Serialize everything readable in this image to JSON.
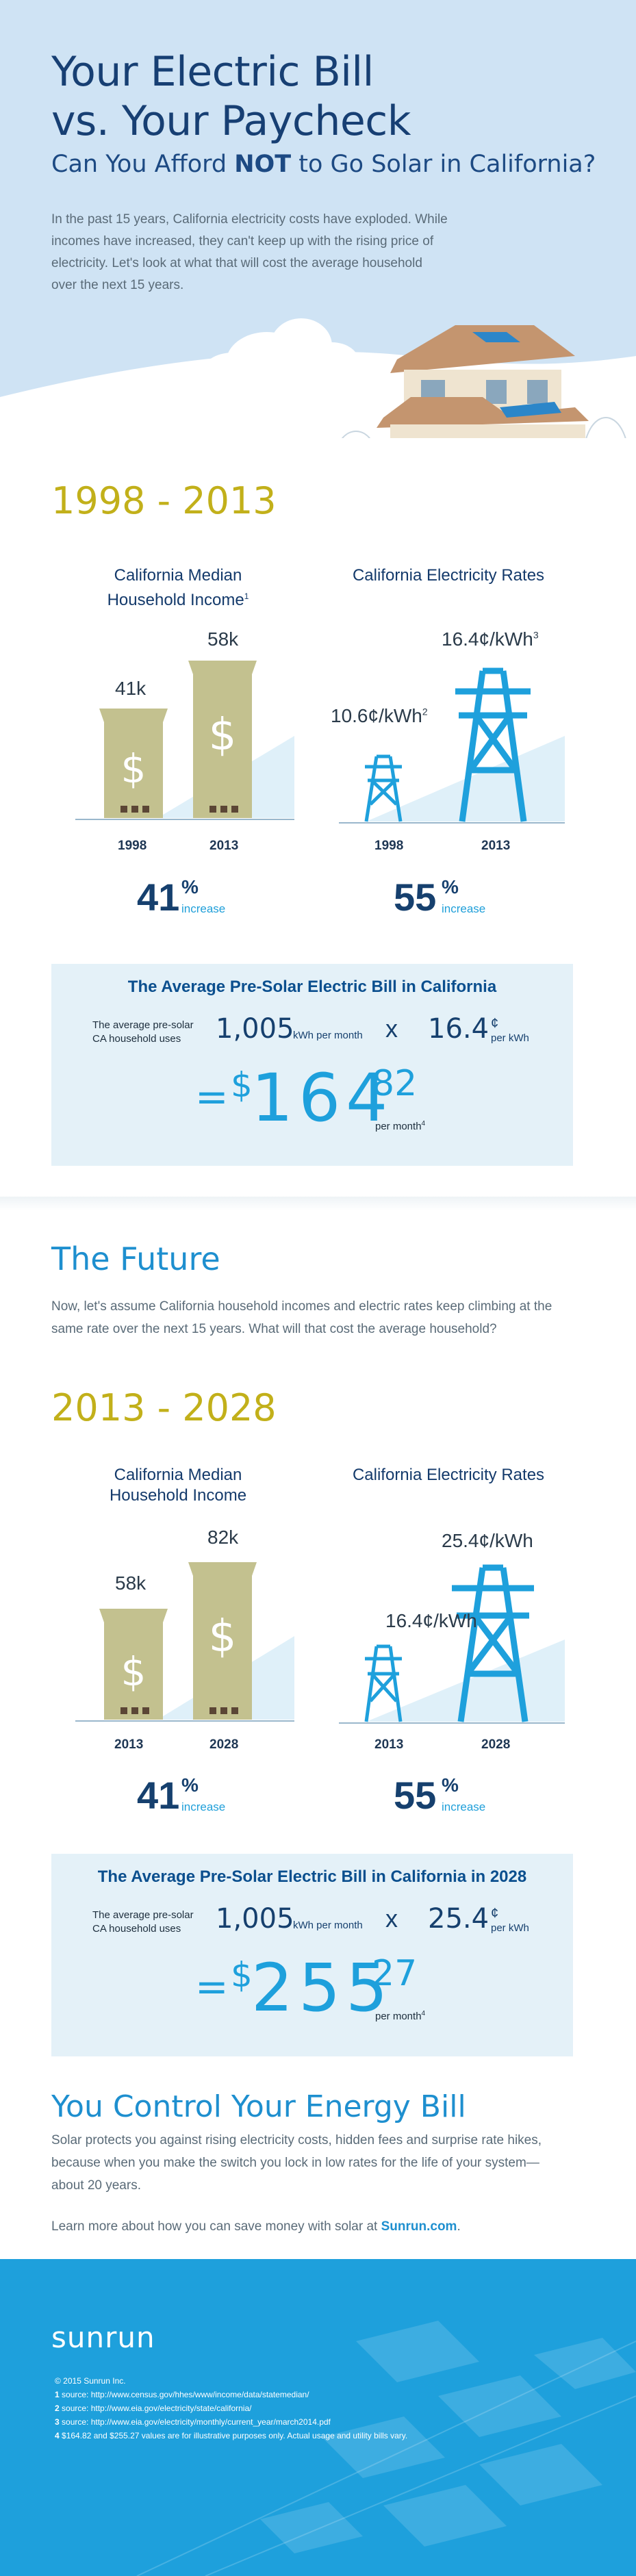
{
  "hero": {
    "title_line1": "Your Electric Bill",
    "title_line2": "vs. Your Paycheck",
    "subtitle_pre": "Can You Afford ",
    "subtitle_em": "NOT",
    "subtitle_post": " to Go Solar in California?",
    "intro": "In the past 15 years, California electricity costs have exploded. While incomes have increased, they can't keep up with the rising price of electricity. Let's look at what that will cost the average household over the next 15 years."
  },
  "period1": {
    "heading": "1998 - 2013",
    "income_head_line1": "California Median",
    "income_head_line2": "Household Income",
    "income_sup": "1",
    "rates_head": "California Electricity Rates",
    "income_values": [
      "41k",
      "58k"
    ],
    "income_years": [
      "1998",
      "2013"
    ],
    "rate_values": [
      "10.6¢/kWh",
      "16.4¢/kWh"
    ],
    "rate_sups": [
      "2",
      "3"
    ],
    "rate_years": [
      "1998",
      "2013"
    ],
    "income_increase_num": "41",
    "income_increase_pct": "%",
    "rate_increase_num": "55",
    "rate_increase_pct": "%",
    "increase_word": "increase",
    "chart_data": [
      {
        "type": "bar",
        "title": "California Median Household Income",
        "categories": [
          "1998",
          "2013"
        ],
        "values": [
          41,
          58
        ],
        "unit": "k"
      },
      {
        "type": "bar",
        "title": "California Electricity Rates",
        "categories": [
          "1998",
          "2013"
        ],
        "values": [
          10.6,
          16.4
        ],
        "unit": "¢/kWh"
      }
    ]
  },
  "bill1": {
    "title": "The Average Pre-Solar Electric Bill in California",
    "uses_line1": "The average pre-solar",
    "uses_line2": "CA household uses",
    "kwh": "1,005",
    "kwh_unit": "kWh per month",
    "x": "x",
    "rate": "16.4",
    "rate_cent": "¢",
    "rate_unit": "per kWh",
    "eq": "=",
    "dollar": "$",
    "total_main": "164",
    "total_cents": "82",
    "per_month": "per month",
    "per_month_sup": "4"
  },
  "future": {
    "heading": "The Future",
    "para": "Now, let's assume California household incomes and electric rates keep climbing at the same rate over the next 15 years. What will that cost the average household?"
  },
  "period2": {
    "heading": "2013 - 2028",
    "income_head_line1": "California Median",
    "income_head_line2": "Household Income",
    "rates_head": "California Electricity Rates",
    "income_values": [
      "58k",
      "82k"
    ],
    "income_years": [
      "2013",
      "2028"
    ],
    "rate_values": [
      "16.4¢/kWh",
      "25.4¢/kWh"
    ],
    "rate_years": [
      "2013",
      "2028"
    ],
    "income_increase_num": "41",
    "income_increase_pct": "%",
    "rate_increase_num": "55",
    "rate_increase_pct": "%",
    "increase_word": "increase",
    "chart_data": [
      {
        "type": "bar",
        "title": "California Median Household Income",
        "categories": [
          "2013",
          "2028"
        ],
        "values": [
          58,
          82
        ],
        "unit": "k"
      },
      {
        "type": "bar",
        "title": "California Electricity Rates",
        "categories": [
          "2013",
          "2028"
        ],
        "values": [
          16.4,
          25.4
        ],
        "unit": "¢/kWh"
      }
    ]
  },
  "bill2": {
    "title": "The Average Pre-Solar Electric Bill in California in 2028",
    "uses_line1": "The average pre-solar",
    "uses_line2": "CA household uses",
    "kwh": "1,005",
    "kwh_unit": "kWh per month",
    "x": "x",
    "rate": "25.4",
    "rate_cent": "¢",
    "rate_unit": "per kWh",
    "eq": "=",
    "dollar": "$",
    "total_main": "255",
    "total_cents": "27",
    "per_month": "per month",
    "per_month_sup": "4"
  },
  "control": {
    "heading": "You Control Your Energy Bill",
    "para": "Solar protects you against rising electricity costs, hidden fees and surprise rate hikes, because when you make the switch you lock in low rates for the life of your system—about 20 years.",
    "learn_pre": "Learn more about how you can save money with solar at ",
    "learn_link": "Sunrun.com",
    "learn_post": "."
  },
  "footer": {
    "logo": "sunrun",
    "copyright": "© 2015 Sunrun Inc.",
    "notes": [
      {
        "n": "1",
        "text": "source: http://www.census.gov/hhes/www/income/data/statemedian/"
      },
      {
        "n": "2",
        "text": "source: http://www.eia.gov/electricity/state/california/"
      },
      {
        "n": "3",
        "text": "source: http://www.eia.gov/electricity/monthly/current_year/march2014.pdf"
      },
      {
        "n": "4",
        "text": "$164.82 and $255.27 values are for illustrative purposes only. Actual usage and utility bills vary."
      }
    ]
  },
  "colors": {
    "navy": "#173f73",
    "gold": "#c2b01a",
    "sky": "#1ea0dc",
    "khaki": "#c3c18f",
    "panel": "#e4f1f8"
  },
  "icons": [
    "house-illustration",
    "money-building-icon",
    "power-tower-icon",
    "cloud-decoration"
  ]
}
